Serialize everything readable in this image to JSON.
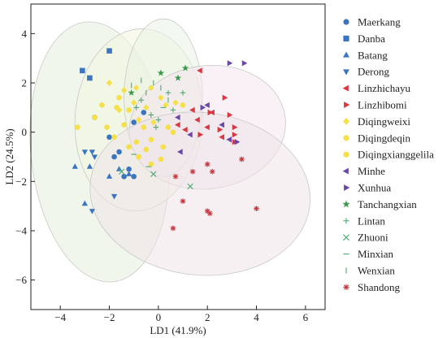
{
  "chart_data": {
    "type": "scatter",
    "xlabel": "LD1 (41.9%)",
    "ylabel": "LD2 (24.5%)",
    "xlim": [
      -5.2,
      6.8
    ],
    "ylim": [
      -7.2,
      5.2
    ],
    "xticks": [
      -4,
      -2,
      0,
      2,
      4,
      6
    ],
    "yticks": [
      -6,
      -4,
      -2,
      0,
      2,
      4
    ],
    "xtick_labels": [
      "−4",
      "−2",
      "0",
      "2",
      "4",
      "6"
    ],
    "ytick_labels": [
      "−6",
      "−4",
      "−2",
      "0",
      "2",
      "4"
    ],
    "grid": false,
    "legend_position": "right",
    "ellipses": [
      {
        "color": "#e3eedb",
        "cx": -2.4,
        "cy": -0.8,
        "rx": 2.8,
        "ry": 5.3,
        "angle": 6
      },
      {
        "color": "#f3f6e0",
        "cx": -0.8,
        "cy": 0.5,
        "rx": 2.6,
        "ry": 3.7,
        "angle": -4
      },
      {
        "color": "#eaf2e3",
        "cx": 0.2,
        "cy": 1.4,
        "rx": 1.6,
        "ry": 3.2,
        "angle": 0
      },
      {
        "color": "#f4e6ef",
        "cx": 2.0,
        "cy": 0.2,
        "rx": 3.2,
        "ry": 2.5,
        "angle": 8
      },
      {
        "color": "#efe4ea",
        "cx": 1.7,
        "cy": -2.5,
        "rx": 4.5,
        "ry": 3.3,
        "angle": -6
      }
    ],
    "series": [
      {
        "name": "Maerkang",
        "marker": "circle",
        "color": "#3b75bf",
        "points": [
          [
            -2.6,
            0.6
          ],
          [
            -2.0,
            -0.2
          ],
          [
            -1.6,
            -0.8
          ],
          [
            -1.2,
            -1.5
          ],
          [
            -1.0,
            -1.8
          ],
          [
            -1.4,
            -1.8
          ],
          [
            -1.0,
            0.4
          ],
          [
            -0.6,
            0.8
          ],
          [
            -1.8,
            -1.0
          ]
        ]
      },
      {
        "name": "Danba",
        "marker": "square",
        "color": "#3b75bf",
        "points": [
          [
            -3.1,
            2.5
          ],
          [
            -2.8,
            2.2
          ],
          [
            -2.0,
            3.3
          ]
        ]
      },
      {
        "name": "Batang",
        "marker": "triangle-up",
        "color": "#3b75bf",
        "points": [
          [
            -3.4,
            -1.4
          ],
          [
            -2.8,
            -1.4
          ],
          [
            -2.0,
            -1.8
          ],
          [
            -1.6,
            -1.5
          ],
          [
            -3.0,
            -2.9
          ],
          [
            -1.2,
            -1.7
          ]
        ]
      },
      {
        "name": "Derong",
        "marker": "triangle-down",
        "color": "#3b75bf",
        "points": [
          [
            -3.0,
            -0.8
          ],
          [
            -2.7,
            -0.8
          ],
          [
            -2.6,
            -1.0
          ],
          [
            -2.7,
            -3.2
          ],
          [
            -1.8,
            -2.6
          ]
        ]
      },
      {
        "name": "Linzhichayu",
        "marker": "triangle-left",
        "color": "#d83640",
        "points": [
          [
            1.7,
            2.5
          ],
          [
            2.2,
            0.8
          ],
          [
            1.6,
            0.5
          ],
          [
            0.8,
            0.3
          ],
          [
            2.0,
            0.2
          ],
          [
            2.6,
            -0.2
          ],
          [
            1.4,
            0.9
          ],
          [
            1.1,
            0.1
          ]
        ]
      },
      {
        "name": "Linzhibomi",
        "marker": "triangle-right",
        "color": "#d83640",
        "points": [
          [
            2.1,
            0.8
          ],
          [
            2.7,
            1.4
          ],
          [
            3.1,
            0.2
          ],
          [
            3.1,
            -0.4
          ],
          [
            2.5,
            0.1
          ],
          [
            2.9,
            0.7
          ],
          [
            1.7,
            -0.1
          ],
          [
            3.1,
            -0.1
          ]
        ]
      },
      {
        "name": "Diqingweixi",
        "marker": "diamond",
        "color": "#f5e04a",
        "points": [
          [
            -2.0,
            2.0
          ],
          [
            -1.4,
            1.7
          ],
          [
            -1.0,
            1.2
          ],
          [
            -0.5,
            1.0
          ],
          [
            -0.3,
            1.8
          ],
          [
            0.1,
            1.4
          ],
          [
            -0.8,
            0.5
          ],
          [
            0.3,
            1.1
          ],
          [
            -0.9,
            1.8
          ],
          [
            0.7,
            1.2
          ],
          [
            -1.6,
            0.9
          ],
          [
            -0.2,
            0.4
          ]
        ]
      },
      {
        "name": "Diqingdeqin",
        "marker": "hexagon",
        "color": "#f5e04a",
        "points": [
          [
            -1.8,
            -0.2
          ],
          [
            -1.2,
            -0.6
          ],
          [
            -0.8,
            -1.0
          ],
          [
            -0.3,
            -0.3
          ],
          [
            0.2,
            -0.6
          ],
          [
            -0.6,
            0.2
          ],
          [
            -1.4,
            0.3
          ],
          [
            0.4,
            0.2
          ],
          [
            -0.9,
            -0.4
          ]
        ]
      },
      {
        "name": "Diqingxianggelila",
        "marker": "circle",
        "color": "#f5e04a",
        "points": [
          [
            -3.3,
            0.2
          ],
          [
            -2.6,
            0.6
          ],
          [
            -2.3,
            1.1
          ],
          [
            -1.6,
            1.4
          ],
          [
            -1.2,
            0.9
          ],
          [
            -0.3,
            -1.3
          ],
          [
            0.1,
            -1.1
          ],
          [
            1.0,
            1.1
          ],
          [
            -0.5,
            -0.7
          ],
          [
            -2.1,
            0.2
          ],
          [
            -1.7,
            1.0
          ],
          [
            0.6,
            0.0
          ]
        ]
      },
      {
        "name": "Minhe",
        "marker": "triangle-left",
        "color": "#6b47a8",
        "points": [
          [
            0.8,
            0.6
          ],
          [
            1.3,
            -0.1
          ],
          [
            0.9,
            -0.8
          ],
          [
            2.0,
            1.1
          ],
          [
            2.9,
            -0.3
          ],
          [
            2.6,
            0.3
          ]
        ]
      },
      {
        "name": "Xunhua",
        "marker": "triangle-right",
        "color": "#6b47a8",
        "points": [
          [
            3.5,
            2.8
          ],
          [
            2.9,
            2.8
          ],
          [
            1.8,
            1.0
          ],
          [
            3.2,
            -0.4
          ]
        ]
      },
      {
        "name": "Tanchangxian",
        "marker": "star",
        "color": "#3a9a4a",
        "points": [
          [
            0.1,
            2.4
          ],
          [
            1.1,
            2.6
          ],
          [
            0.8,
            2.2
          ],
          [
            -1.1,
            1.6
          ]
        ]
      },
      {
        "name": "Lintan",
        "marker": "plus",
        "color": "#4caa70",
        "points": [
          [
            -0.7,
            1.3
          ],
          [
            -0.3,
            0.7
          ],
          [
            0.6,
            0.9
          ],
          [
            -0.1,
            0.2
          ],
          [
            0.4,
            1.6
          ],
          [
            -0.9,
            1.0
          ],
          [
            1.0,
            1.6
          ],
          [
            0.0,
            0.5
          ]
        ]
      },
      {
        "name": "Zhuoni",
        "marker": "x",
        "color": "#4caa70",
        "points": [
          [
            -1.5,
            -1.6
          ],
          [
            -0.2,
            -1.7
          ],
          [
            1.3,
            -2.2
          ]
        ]
      },
      {
        "name": "Minxian",
        "marker": "hline",
        "color": "#4caa70",
        "points": [
          [
            -1.0,
            -0.9
          ],
          [
            -0.4,
            -1.4
          ],
          [
            0.2,
            1.0
          ]
        ]
      },
      {
        "name": "Wenxian",
        "marker": "vline",
        "color": "#4caa70",
        "points": [
          [
            -1.1,
            1.9
          ],
          [
            -0.5,
            1.6
          ],
          [
            -0.2,
            2.0
          ],
          [
            0.4,
            1.3
          ],
          [
            0.1,
            1.8
          ],
          [
            -0.7,
            2.1
          ]
        ]
      },
      {
        "name": "Shandong",
        "marker": "asterisk",
        "color": "#c9343e",
        "points": [
          [
            0.7,
            -1.8
          ],
          [
            1.4,
            -1.6
          ],
          [
            2.0,
            -1.3
          ],
          [
            2.2,
            -1.6
          ],
          [
            3.4,
            -1.1
          ],
          [
            1.0,
            -2.8
          ],
          [
            2.1,
            -3.3
          ],
          [
            0.6,
            -3.9
          ],
          [
            4.0,
            -3.1
          ],
          [
            2.0,
            -3.2
          ]
        ]
      }
    ]
  }
}
